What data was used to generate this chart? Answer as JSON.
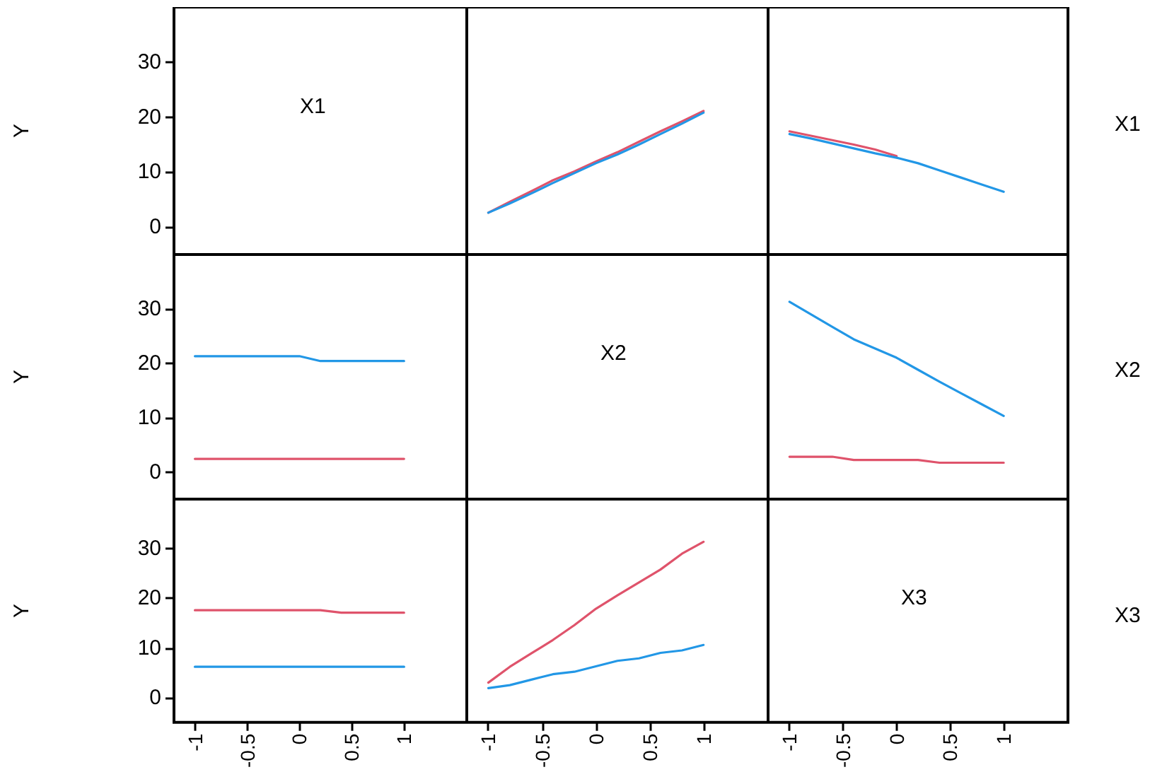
{
  "chart_data": [
    {
      "type": "line",
      "ylabel": "Y",
      "annotations": [
        "X1"
      ],
      "xlim": [
        -1.2,
        1.6
      ],
      "xticks": [
        -1,
        -0.5,
        0,
        0.5,
        1
      ],
      "ylim": [
        -5,
        40
      ],
      "yticks": [
        0,
        10,
        20,
        30
      ],
      "tick_labels": "y"
    },
    {
      "type": "line",
      "x": [
        -1,
        -0.8,
        -0.6,
        -0.4,
        -0.2,
        0,
        0.2,
        0.4,
        0.6,
        0.8,
        1
      ],
      "series": [
        {
          "color": "#df536b",
          "values": [
            2.6,
            4.6,
            6.5,
            8.5,
            10.1,
            11.9,
            13.6,
            15.5,
            17.4,
            19.2,
            21.1
          ]
        },
        {
          "color": "#2297e6",
          "values": [
            2.6,
            4.3,
            6.1,
            8.0,
            9.8,
            11.6,
            13.2,
            15.0,
            16.9,
            18.8,
            20.8
          ]
        }
      ],
      "xlim": [
        -1.2,
        1.6
      ],
      "xticks": [
        -1,
        -0.5,
        0,
        0.5,
        1
      ],
      "ylim": [
        -5,
        40
      ],
      "yticks": [
        0,
        10,
        20,
        30
      ],
      "tick_labels": false
    },
    {
      "type": "line",
      "y2label": "X1",
      "x": [
        -1,
        -0.8,
        -0.6,
        -0.4,
        -0.2,
        0,
        0.2,
        0.4,
        0.6,
        0.8,
        1
      ],
      "series": [
        {
          "color": "#df536b",
          "values": [
            17.4,
            16.6,
            15.8,
            15.0,
            14.1,
            12.9,
            null,
            null,
            null,
            null,
            null
          ]
        },
        {
          "color": "#2297e6",
          "values": [
            16.9,
            16.1,
            15.2,
            14.3,
            13.4,
            12.6,
            11.6,
            10.3,
            9.0,
            7.7,
            6.4
          ]
        }
      ],
      "xlim": [
        -1.2,
        1.6
      ],
      "xticks": [
        -1,
        -0.5,
        0,
        0.5,
        1
      ],
      "ylim": [
        -5,
        40
      ],
      "yticks": [
        0,
        10,
        20,
        30
      ],
      "tick_labels": false
    },
    {
      "type": "line",
      "ylabel": "Y",
      "x": [
        -1,
        -0.8,
        -0.6,
        -0.4,
        -0.2,
        0,
        0.2,
        0.4,
        0.6,
        0.8,
        1
      ],
      "series": [
        {
          "color": "#df536b",
          "values": [
            2.4,
            2.4,
            2.4,
            2.4,
            2.4,
            2.4,
            2.4,
            2.4,
            2.4,
            2.4,
            2.4
          ]
        },
        {
          "color": "#2297e6",
          "values": [
            21.3,
            21.3,
            21.3,
            21.3,
            21.3,
            21.3,
            20.4,
            20.4,
            20.4,
            20.4,
            20.4
          ]
        }
      ],
      "xlim": [
        -1.2,
        1.6
      ],
      "xticks": [
        -1,
        -0.5,
        0,
        0.5,
        1
      ],
      "ylim": [
        -5,
        40
      ],
      "yticks": [
        0,
        10,
        20,
        30
      ],
      "tick_labels": "y"
    },
    {
      "type": "line",
      "annotations": [
        "X2"
      ],
      "xlim": [
        -1.2,
        1.6
      ],
      "xticks": [
        -1,
        -0.5,
        0,
        0.5,
        1
      ],
      "ylim": [
        -5,
        40
      ],
      "yticks": [
        0,
        10,
        20,
        30
      ],
      "tick_labels": false
    },
    {
      "type": "line",
      "y2label": "X2",
      "x": [
        -1,
        -0.8,
        -0.6,
        -0.4,
        -0.2,
        0,
        0.2,
        0.4,
        0.6,
        0.8,
        1
      ],
      "series": [
        {
          "color": "#df536b",
          "values": [
            2.8,
            2.8,
            2.8,
            2.2,
            2.2,
            2.2,
            2.2,
            1.7,
            1.7,
            1.7,
            1.7
          ]
        },
        {
          "color": "#2297e6",
          "values": [
            31.3,
            29.0,
            26.7,
            24.4,
            22.7,
            21.0,
            18.8,
            16.6,
            14.5,
            12.4,
            10.3
          ]
        }
      ],
      "xlim": [
        -1.2,
        1.6
      ],
      "xticks": [
        -1,
        -0.5,
        0,
        0.5,
        1
      ],
      "ylim": [
        -5,
        40
      ],
      "yticks": [
        0,
        10,
        20,
        30
      ],
      "tick_labels": false
    },
    {
      "type": "line",
      "ylabel": "Y",
      "x": [
        -1,
        -0.8,
        -0.6,
        -0.4,
        -0.2,
        0,
        0.2,
        0.4,
        0.6,
        0.8,
        1
      ],
      "series": [
        {
          "color": "#df536b",
          "values": [
            17.6,
            17.6,
            17.6,
            17.6,
            17.6,
            17.6,
            17.6,
            17.1,
            17.1,
            17.1,
            17.1
          ]
        },
        {
          "color": "#2297e6",
          "values": [
            6.2,
            6.2,
            6.2,
            6.2,
            6.2,
            6.2,
            6.2,
            6.2,
            6.2,
            6.2,
            6.2
          ]
        }
      ],
      "xlim": [
        -1.2,
        1.6
      ],
      "xticks": [
        -1,
        -0.5,
        0,
        0.5,
        1
      ],
      "ylim": [
        -5,
        40
      ],
      "yticks": [
        0,
        10,
        20,
        30
      ]
    },
    {
      "type": "line",
      "x": [
        -1,
        -0.8,
        -0.6,
        -0.4,
        -0.2,
        0,
        0.2,
        0.4,
        0.6,
        0.8,
        1
      ],
      "series": [
        {
          "color": "#df536b",
          "values": [
            3.0,
            6.2,
            8.9,
            11.6,
            14.6,
            17.9,
            20.6,
            23.2,
            25.8,
            29.0,
            31.4
          ]
        },
        {
          "color": "#2297e6",
          "values": [
            1.9,
            2.5,
            3.6,
            4.7,
            5.2,
            6.3,
            7.4,
            7.9,
            9.0,
            9.5,
            10.6
          ]
        }
      ],
      "xlim": [
        -1.2,
        1.6
      ],
      "xticks": [
        -1,
        -0.5,
        0,
        0.5,
        1
      ],
      "ylim": [
        -5,
        40
      ],
      "yticks": [
        0,
        10,
        20,
        30
      ],
      "tick_labels": "x"
    },
    {
      "type": "line",
      "y2label": "X3",
      "annotations": [
        "X3"
      ],
      "xlim": [
        -1.2,
        1.6
      ],
      "xticks": [
        -1,
        -0.5,
        0,
        0.5,
        1
      ],
      "ylim": [
        -5,
        40
      ],
      "yticks": [
        0,
        10,
        20,
        30
      ],
      "tick_labels": "x"
    }
  ]
}
